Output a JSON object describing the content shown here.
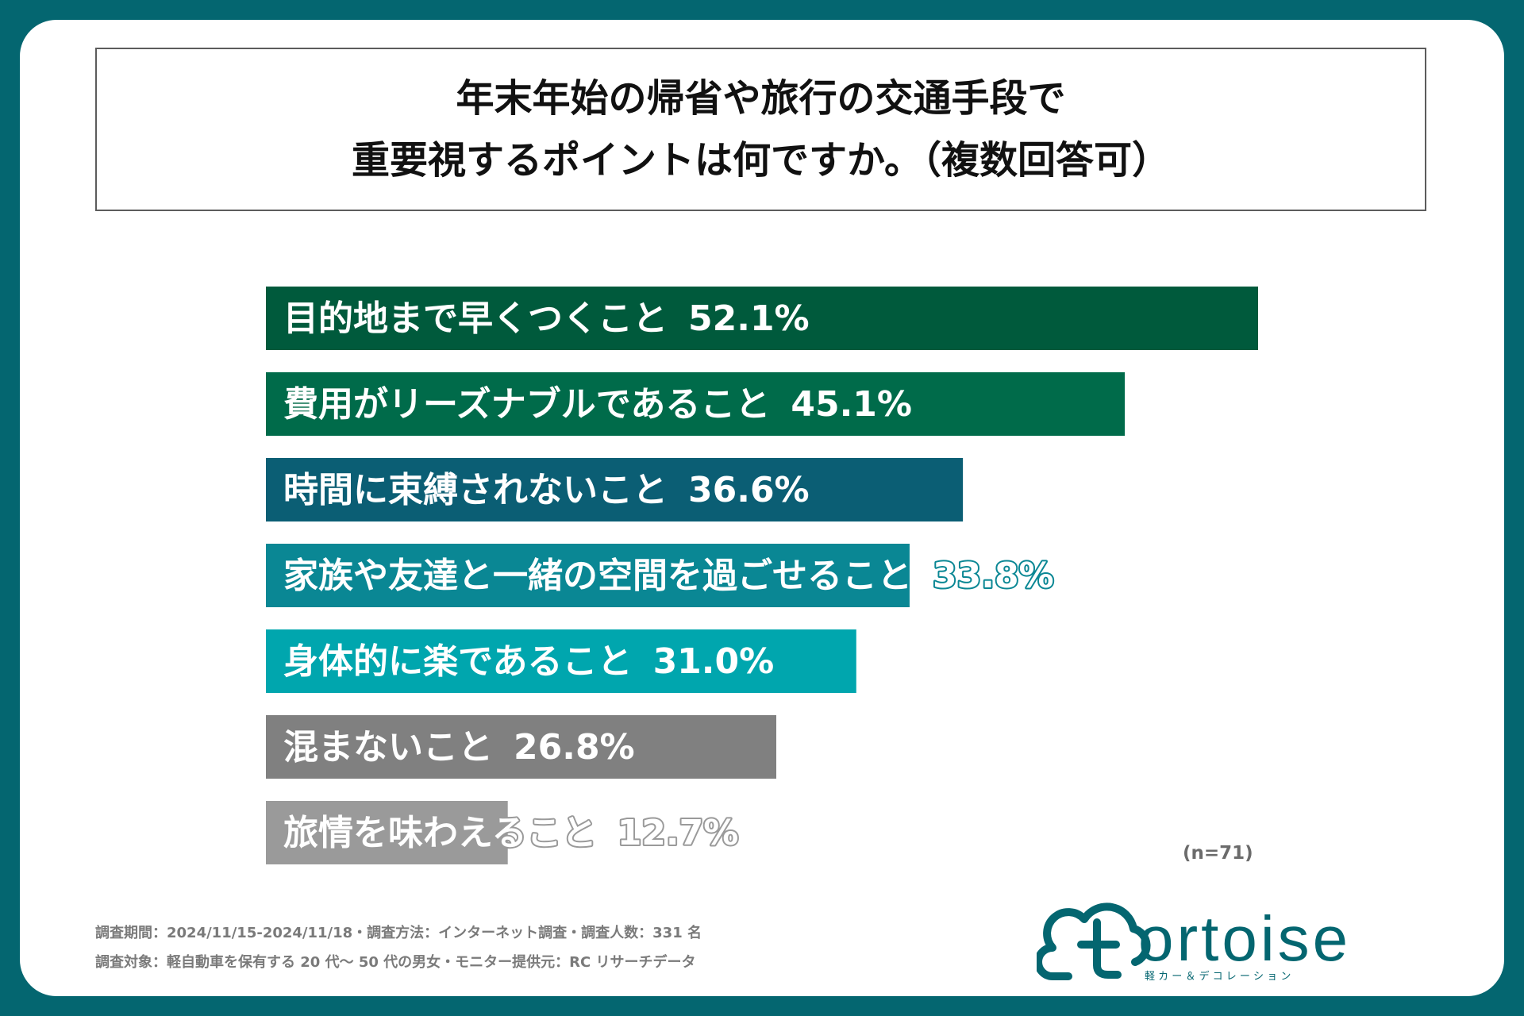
{
  "title": {
    "line1": "年末年始の帰省や旅行の交通手段で",
    "line2": "重要視するポイントは何ですか。（複数回答可）"
  },
  "chart_data": {
    "type": "bar",
    "orientation": "horizontal",
    "categories": [
      "目的地まで早くつくこと",
      "費用がリーズナブルであること",
      "時間に束縛されないこと",
      "家族や友達と一緒の空間を過ごせること",
      "身体的に楽であること",
      "混まないこと",
      "旅情を味わえること"
    ],
    "values": [
      52.1,
      45.1,
      36.6,
      33.8,
      31.0,
      26.8,
      12.7
    ],
    "value_labels": [
      "52.1%",
      "45.1%",
      "36.6%",
      "33.8%",
      "31.0%",
      "26.8%",
      "12.7%"
    ],
    "colors": [
      "#005a3c",
      "#006b4a",
      "#0b5e74",
      "#0a8794",
      "#00a6ae",
      "#808080",
      "#9a9a9a"
    ],
    "xlim": [
      0,
      52.1
    ],
    "grid": false,
    "legend": "none"
  },
  "sample_note": "(n=71)",
  "footer": {
    "line1": "調査期間：2024/11/15-2024/11/18・調査方法：インターネット調査・調査人数：331 名",
    "line2": "調査対象：軽自動車を保有する 20 代～ 50 代の男女・モニター提供元：RC リサーチデータ"
  },
  "logo": {
    "name": "tortoise",
    "tagline": "軽 カ ー ＆ デ コ レ ー シ ョ ン",
    "color": "#046670"
  }
}
